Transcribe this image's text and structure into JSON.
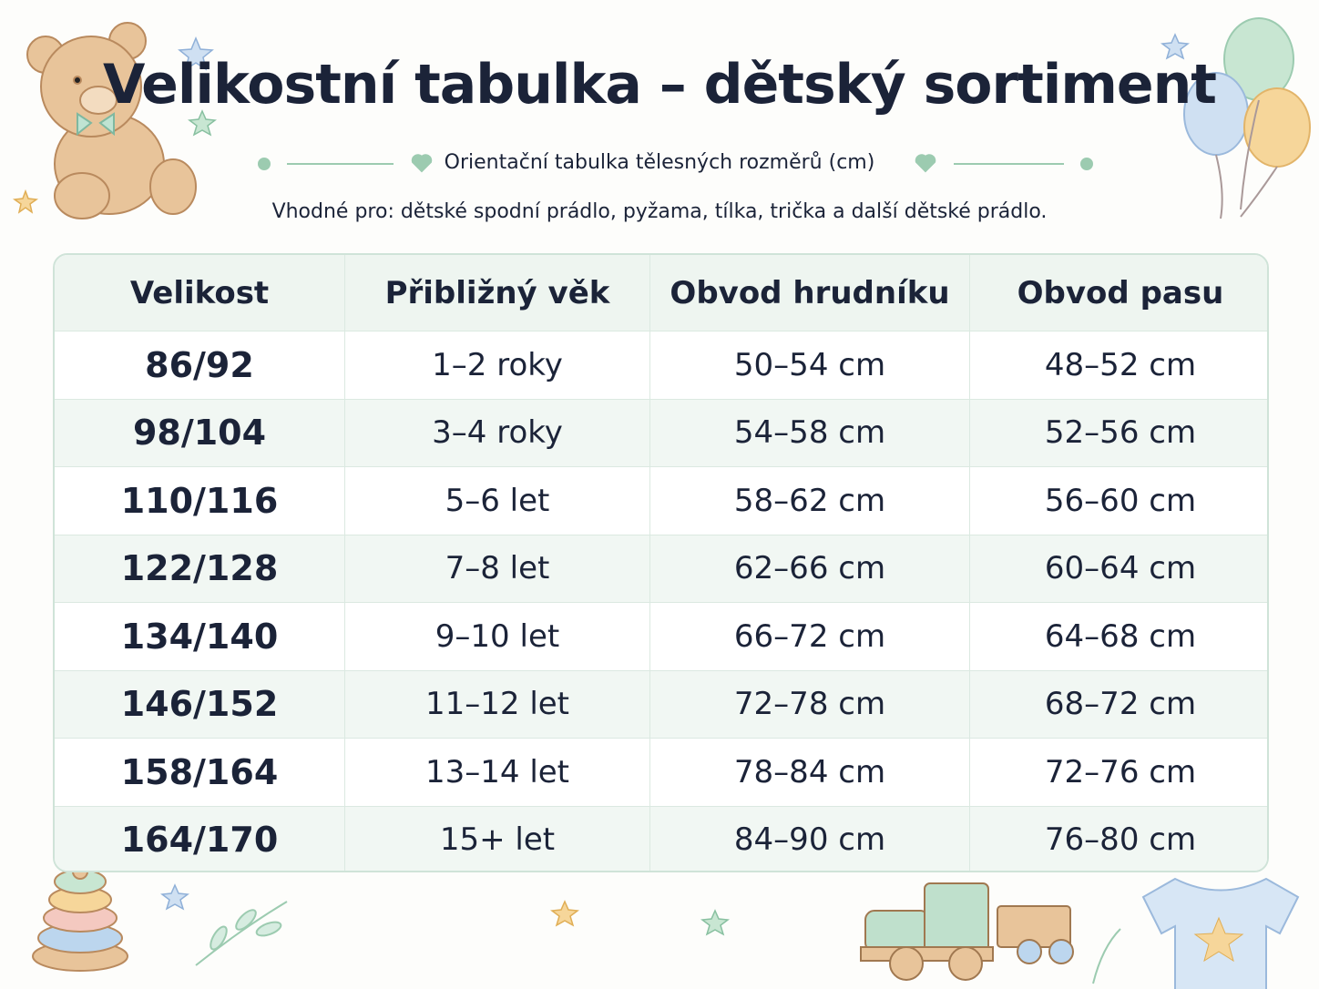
{
  "header": {
    "title": "Velikostní tabulka – dětský sortiment",
    "subtitle": "Orientační tabulka tělesných rozměrů (cm)",
    "note": "Vhodné pro: dětské spodní prádlo, pyžama, tílka, trička a další dětské prádlo."
  },
  "table": {
    "columns": [
      "Velikost",
      "Přibližný věk",
      "Obvod hrudníku",
      "Obvod pasu"
    ],
    "rows": [
      [
        "86/92",
        "1–2 roky",
        "50–54 cm",
        "48–52 cm"
      ],
      [
        "98/104",
        "3–4 roky",
        "54–58 cm",
        "52–56 cm"
      ],
      [
        "110/116",
        "5–6 let",
        "58–62 cm",
        "56–60 cm"
      ],
      [
        "122/128",
        "7–8 let",
        "62–66 cm",
        "60–64 cm"
      ],
      [
        "134/140",
        "9–10 let",
        "66–72 cm",
        "64–68 cm"
      ],
      [
        "146/152",
        "11–12 let",
        "72–78 cm",
        "68–72 cm"
      ],
      [
        "158/164",
        "13–14 let",
        "78–84 cm",
        "72–76 cm"
      ],
      [
        "164/170",
        "15+ let",
        "84–90 cm",
        "76–80 cm"
      ]
    ]
  }
}
